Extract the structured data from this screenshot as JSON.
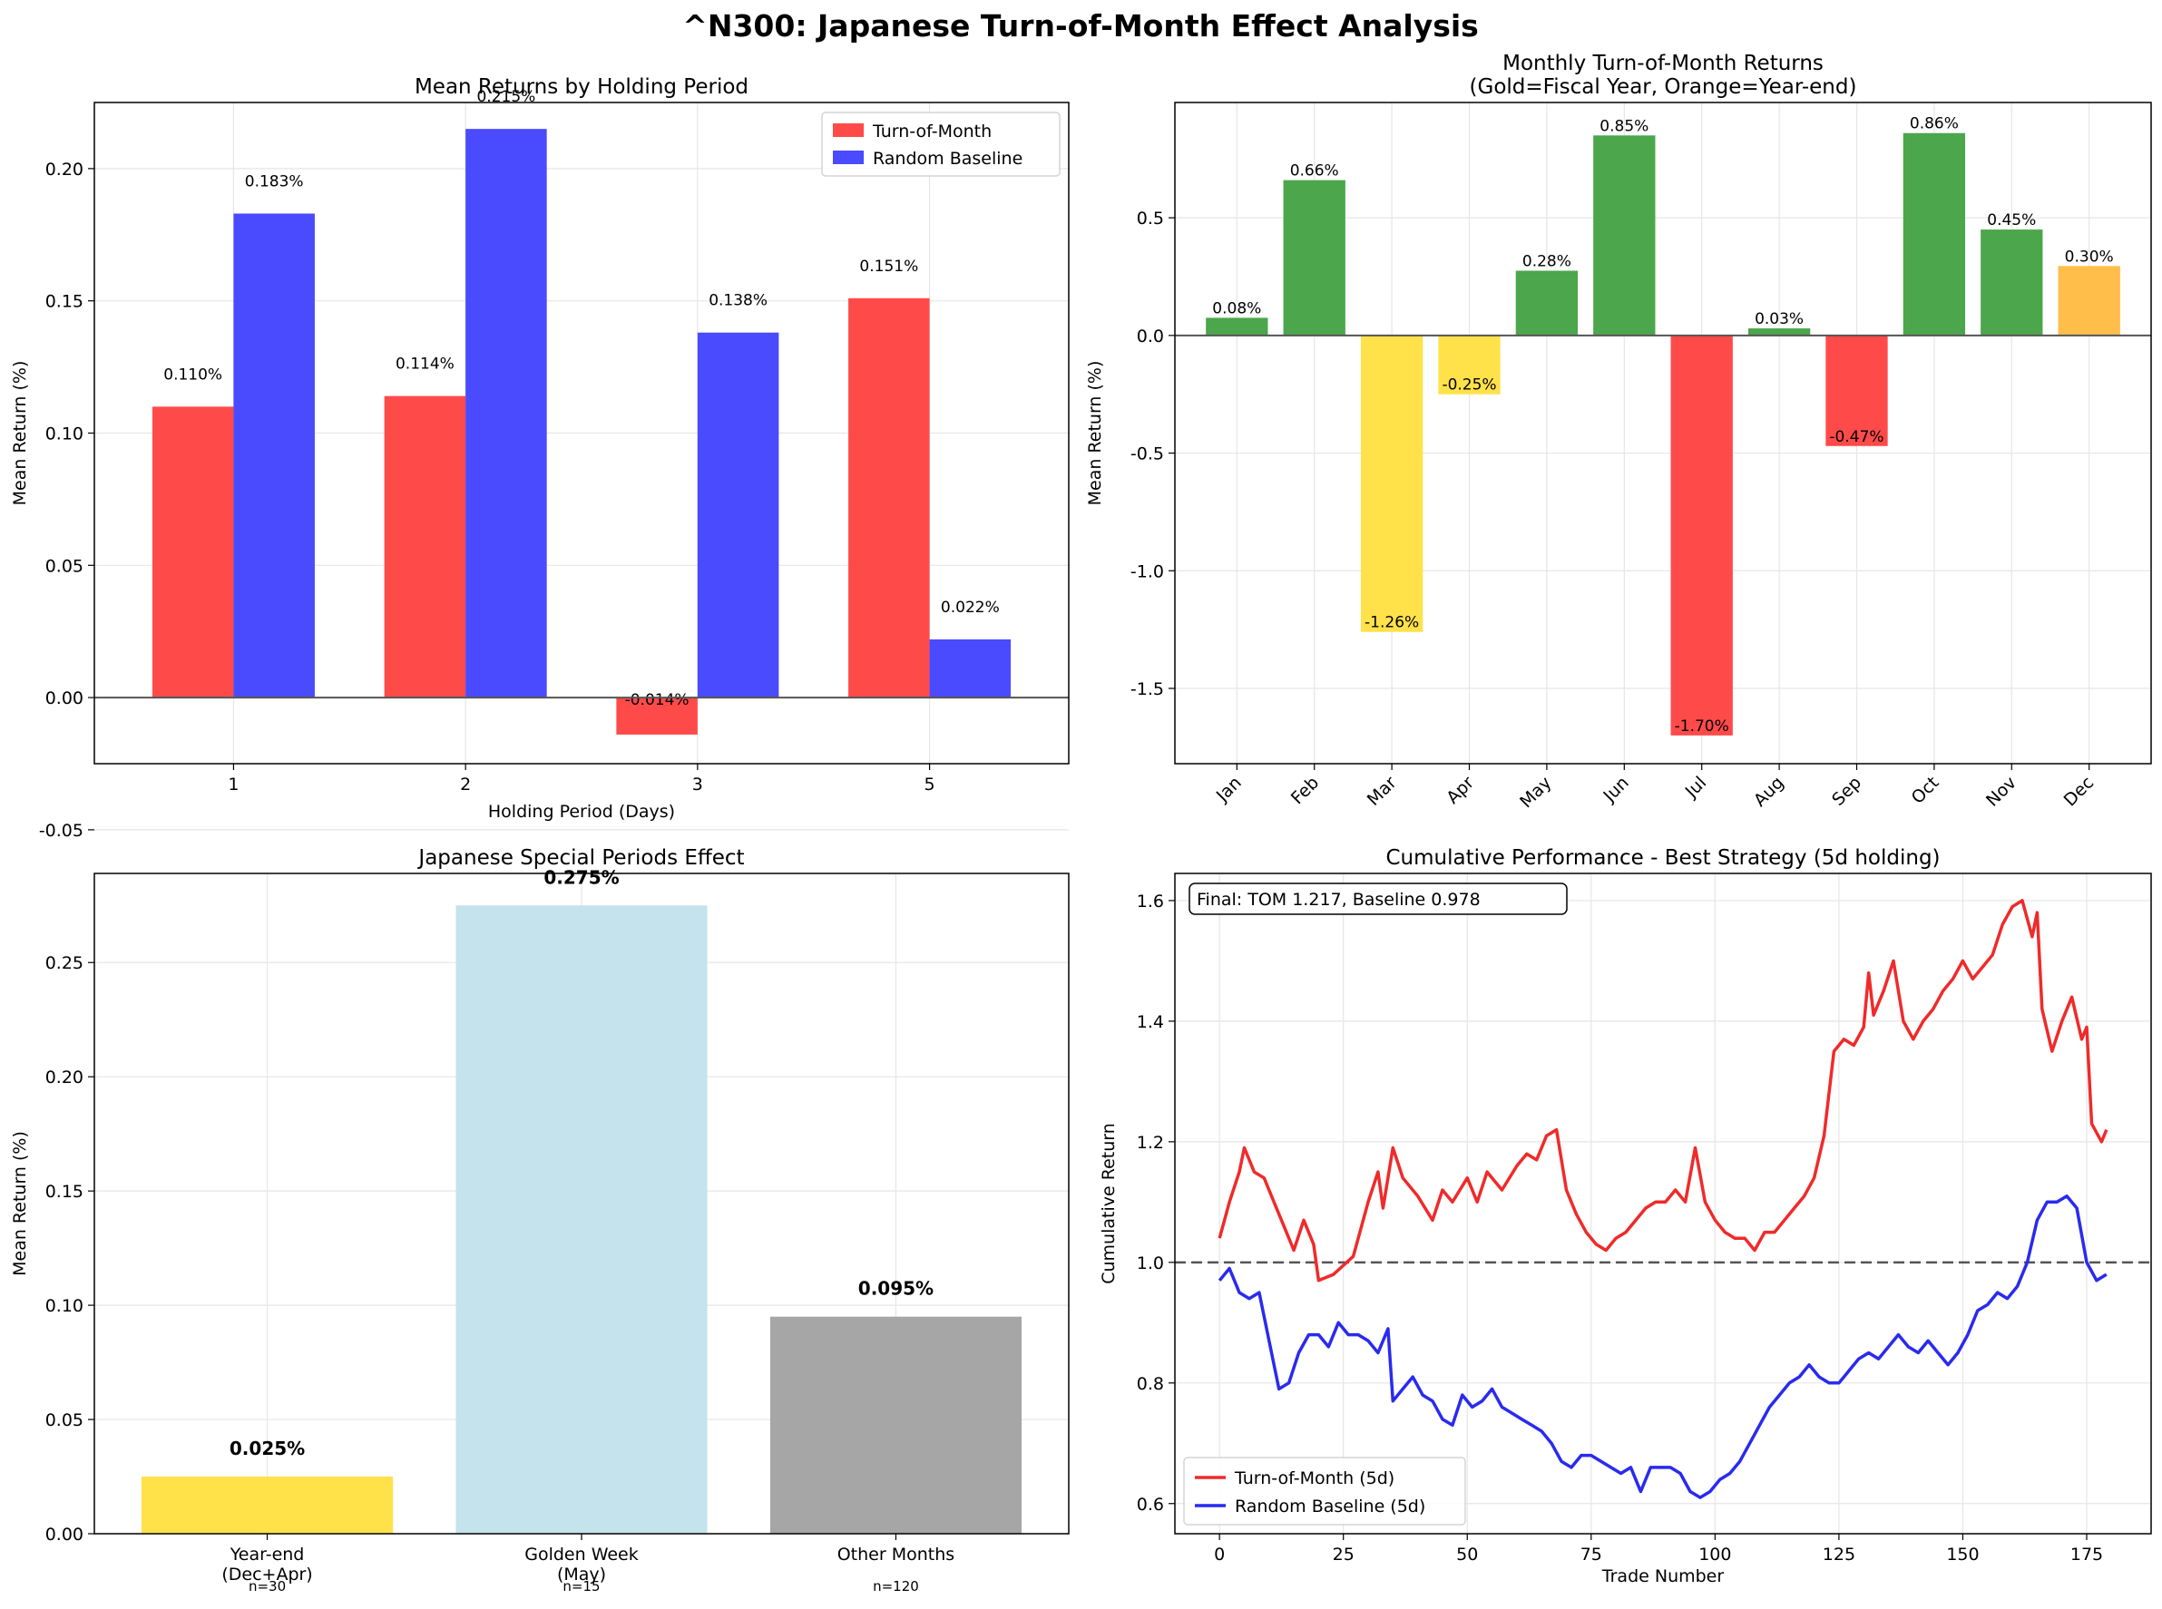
{
  "figure": {
    "title": "^N300: Japanese Turn-of-Month Effect Analysis"
  },
  "chart_data": [
    {
      "type": "bar",
      "title": "Mean Returns by Holding Period",
      "xlabel": "Holding Period (Days)",
      "ylabel": "Mean Return (%)",
      "categories": [
        "1",
        "2",
        "3",
        "5"
      ],
      "ylim": [
        -0.025,
        0.225
      ],
      "yticks": [
        "-0.05",
        "0.00",
        "0.05",
        "0.10",
        "0.15",
        "0.20"
      ],
      "yticks_values": [
        -0.05,
        0.0,
        0.05,
        0.1,
        0.15,
        0.2
      ],
      "grid": true,
      "legend": "top-right",
      "series": [
        {
          "name": "Turn-of-Month",
          "color": "#ff4a4a",
          "values": [
            0.11,
            0.114,
            -0.014,
            0.151
          ],
          "labels": [
            "0.110%",
            "0.114%",
            "-0.014%",
            "0.151%"
          ]
        },
        {
          "name": "Random Baseline",
          "color": "#4a4aff",
          "values": [
            0.183,
            0.215,
            0.138,
            0.022
          ],
          "labels": [
            "0.183%",
            "0.215%",
            "0.138%",
            "0.022%"
          ]
        }
      ]
    },
    {
      "type": "bar",
      "title": "Monthly Turn-of-Month Returns",
      "subtitle": "(Gold=Fiscal Year, Orange=Year-end)",
      "xlabel": "",
      "ylabel": "Mean Return (%)",
      "categories": [
        "Jan",
        "Feb",
        "Mar",
        "Apr",
        "May",
        "Jun",
        "Jul",
        "Aug",
        "Sep",
        "Oct",
        "Nov",
        "Dec"
      ],
      "values": [
        0.075,
        0.66,
        -1.26,
        -0.25,
        0.275,
        0.85,
        -1.7,
        0.03,
        -0.47,
        0.86,
        0.45,
        0.295
      ],
      "labels": [
        "0.08%",
        "0.66%",
        "-1.26%",
        "-0.25%",
        "0.28%",
        "0.85%",
        "-1.70%",
        "0.03%",
        "-0.47%",
        "0.86%",
        "0.45%",
        "0.30%"
      ],
      "colors": [
        "#4ca64c",
        "#4ca64c",
        "#ffe14a",
        "#ffe14a",
        "#4ca64c",
        "#4ca64c",
        "#ff4a4a",
        "#4ca64c",
        "#ff4a4a",
        "#4ca64c",
        "#4ca64c",
        "#ffbe4a"
      ],
      "ylim": [
        -1.82,
        0.99
      ],
      "yticks": [
        "-1.5",
        "-1.0",
        "-0.5",
        "0.0",
        "0.5"
      ],
      "yticks_values": [
        -1.5,
        -1.0,
        -0.5,
        0.0,
        0.5
      ],
      "grid": true
    },
    {
      "type": "bar",
      "title": "Japanese Special Periods Effect",
      "xlabel": "",
      "ylabel": "Mean Return (%)",
      "categories": [
        "Year-end\n(Dec+Apr)",
        "Golden Week\n(May)",
        "Other Months"
      ],
      "counts": [
        "n=30",
        "n=15",
        "n=120"
      ],
      "values": [
        0.025,
        0.275,
        0.095
      ],
      "labels": [
        "0.025%",
        "0.275%",
        "0.095%"
      ],
      "colors": [
        "#ffe14a",
        "#c5e3ec",
        "#a6a6a6"
      ],
      "ylim": [
        0,
        0.289
      ],
      "yticks": [
        "0.00",
        "0.05",
        "0.10",
        "0.15",
        "0.20",
        "0.25"
      ],
      "yticks_values": [
        0.0,
        0.05,
        0.1,
        0.15,
        0.2,
        0.25
      ],
      "grid": true
    },
    {
      "type": "line",
      "title": "Cumulative Performance - Best Strategy (5d holding)",
      "xlabel": "Trade Number",
      "ylabel": "Cumulative Return",
      "annotation": "Final: TOM 1.217, Baseline 0.978",
      "xlim": [
        -9,
        188
      ],
      "ylim": [
        0.55,
        1.645
      ],
      "xticks": [
        "0",
        "25",
        "50",
        "75",
        "100",
        "125",
        "150",
        "175"
      ],
      "xticks_values": [
        0,
        25,
        50,
        75,
        100,
        125,
        150,
        175
      ],
      "yticks": [
        "0.6",
        "0.8",
        "1.0",
        "1.2",
        "1.4",
        "1.6"
      ],
      "yticks_values": [
        0.6,
        0.8,
        1.0,
        1.2,
        1.4,
        1.6
      ],
      "reference_line": 1.0,
      "grid": true,
      "legend": "bottom-left",
      "series": [
        {
          "name": "Turn-of-Month (5d)",
          "color": "#f02a2a",
          "x": [
            0,
            2,
            4,
            5,
            7,
            9,
            11,
            13,
            15,
            17,
            19,
            20,
            23,
            27,
            30,
            32,
            33,
            35,
            37,
            40,
            43,
            45,
            47,
            50,
            52,
            54,
            57,
            60,
            62,
            64,
            66,
            68,
            70,
            72,
            74,
            76,
            78,
            80,
            82,
            84,
            86,
            88,
            90,
            92,
            94,
            96,
            98,
            100,
            102,
            104,
            106,
            108,
            110,
            112,
            114,
            116,
            118,
            120,
            122,
            124,
            126,
            128,
            130,
            131,
            132,
            134,
            136,
            138,
            140,
            142,
            144,
            146,
            148,
            150,
            152,
            154,
            156,
            158,
            160,
            162,
            164,
            165,
            166,
            168,
            170,
            172,
            174,
            175,
            176,
            178,
            179
          ],
          "y": [
            1.04,
            1.1,
            1.15,
            1.19,
            1.15,
            1.14,
            1.1,
            1.06,
            1.02,
            1.07,
            1.03,
            0.97,
            0.98,
            1.01,
            1.1,
            1.15,
            1.09,
            1.19,
            1.14,
            1.11,
            1.07,
            1.12,
            1.1,
            1.14,
            1.1,
            1.15,
            1.12,
            1.16,
            1.18,
            1.17,
            1.21,
            1.22,
            1.12,
            1.08,
            1.05,
            1.03,
            1.02,
            1.04,
            1.05,
            1.07,
            1.09,
            1.1,
            1.1,
            1.12,
            1.1,
            1.19,
            1.1,
            1.07,
            1.05,
            1.04,
            1.04,
            1.02,
            1.05,
            1.05,
            1.07,
            1.09,
            1.11,
            1.14,
            1.21,
            1.35,
            1.37,
            1.36,
            1.39,
            1.48,
            1.41,
            1.45,
            1.5,
            1.4,
            1.37,
            1.4,
            1.42,
            1.45,
            1.47,
            1.5,
            1.47,
            1.49,
            1.51,
            1.56,
            1.59,
            1.6,
            1.54,
            1.58,
            1.42,
            1.35,
            1.4,
            1.44,
            1.37,
            1.39,
            1.23,
            1.2,
            1.22
          ]
        },
        {
          "name": "Random Baseline (5d)",
          "color": "#2a2af0",
          "x": [
            0,
            2,
            4,
            6,
            8,
            10,
            12,
            14,
            16,
            18,
            20,
            22,
            24,
            26,
            28,
            30,
            32,
            34,
            35,
            37,
            39,
            41,
            43,
            45,
            47,
            49,
            51,
            53,
            55,
            57,
            59,
            61,
            63,
            65,
            67,
            69,
            71,
            73,
            75,
            77,
            79,
            81,
            83,
            85,
            87,
            89,
            91,
            93,
            95,
            97,
            99,
            101,
            103,
            105,
            107,
            109,
            111,
            113,
            115,
            117,
            119,
            121,
            123,
            125,
            127,
            129,
            131,
            133,
            135,
            137,
            139,
            141,
            143,
            145,
            147,
            149,
            151,
            153,
            155,
            157,
            159,
            161,
            163,
            165,
            167,
            169,
            171,
            173,
            175,
            177,
            179
          ],
          "y": [
            0.97,
            0.99,
            0.95,
            0.94,
            0.95,
            0.87,
            0.79,
            0.8,
            0.85,
            0.88,
            0.88,
            0.86,
            0.9,
            0.88,
            0.88,
            0.87,
            0.85,
            0.89,
            0.77,
            0.79,
            0.81,
            0.78,
            0.77,
            0.74,
            0.73,
            0.78,
            0.76,
            0.77,
            0.79,
            0.76,
            0.75,
            0.74,
            0.73,
            0.72,
            0.7,
            0.67,
            0.66,
            0.68,
            0.68,
            0.67,
            0.66,
            0.65,
            0.66,
            0.62,
            0.66,
            0.66,
            0.66,
            0.65,
            0.62,
            0.61,
            0.62,
            0.64,
            0.65,
            0.67,
            0.7,
            0.73,
            0.76,
            0.78,
            0.8,
            0.81,
            0.83,
            0.81,
            0.8,
            0.8,
            0.82,
            0.84,
            0.85,
            0.84,
            0.86,
            0.88,
            0.86,
            0.85,
            0.87,
            0.85,
            0.83,
            0.85,
            0.88,
            0.92,
            0.93,
            0.95,
            0.94,
            0.96,
            1.0,
            1.07,
            1.1,
            1.1,
            1.11,
            1.09,
            1.0,
            0.97,
            0.98
          ]
        }
      ]
    }
  ]
}
